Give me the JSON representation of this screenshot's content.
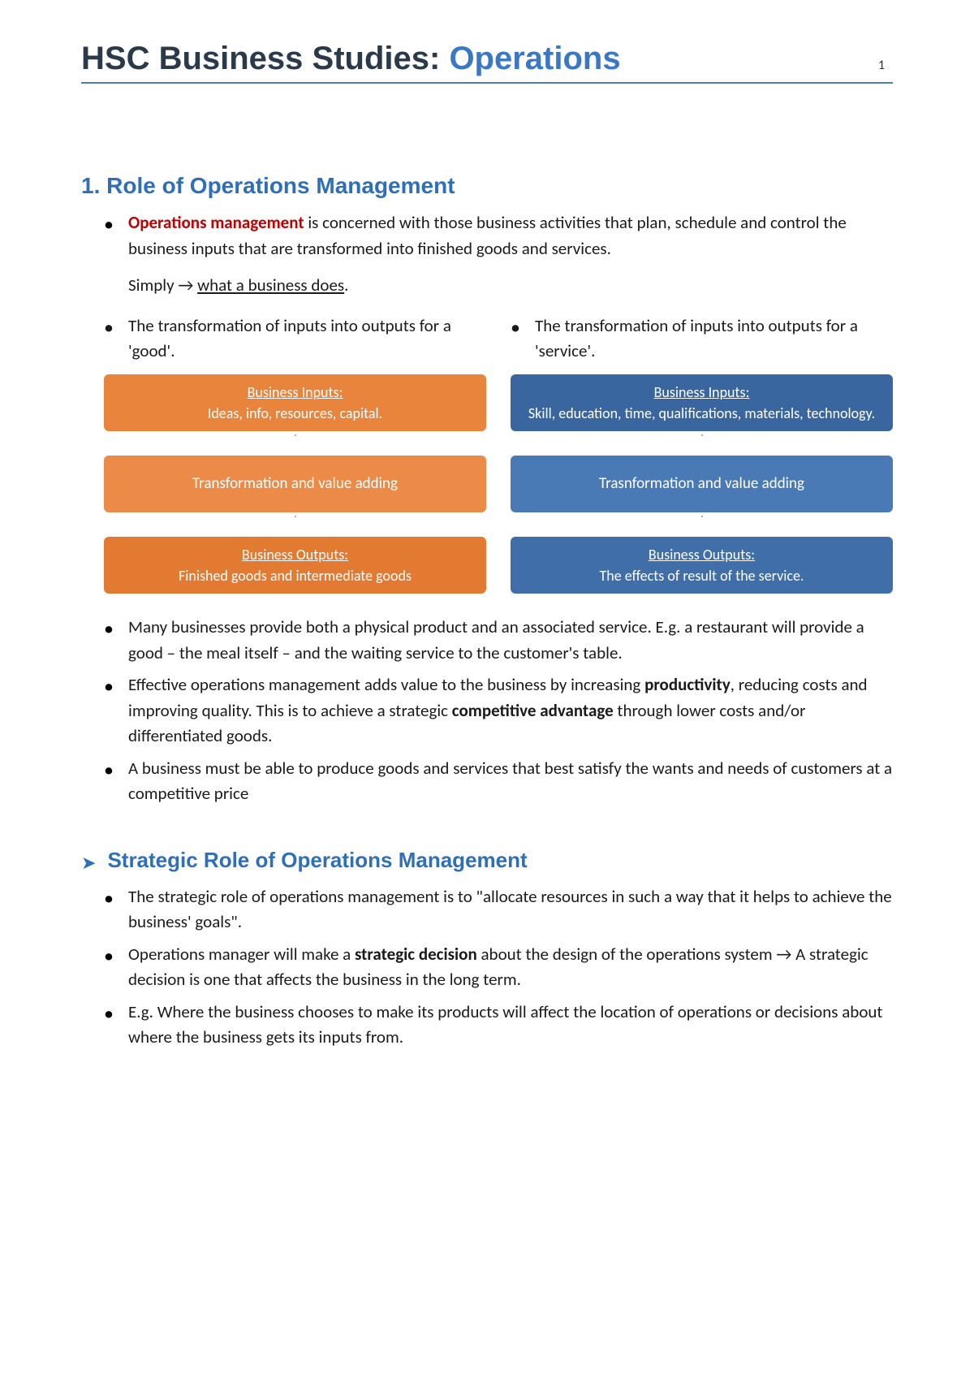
{
  "header": {
    "title_prefix": "HSC Business Studies: ",
    "title_accent": "Operations",
    "page_number": "1"
  },
  "section1": {
    "heading": "1. Role of Operations Management",
    "intro_term": "Operations management",
    "intro_rest": " is concerned with those business activities that plan, schedule and control the business inputs that are transformed into finished goods and services.",
    "simply_prefix": "Simply → ",
    "simply_underlined": "what a business does",
    "simply_suffix": "."
  },
  "columns": {
    "left": {
      "bullet": "The transformation of inputs into outputs for a 'good'.",
      "box1_title": "Business Inputs:",
      "box1_sub": "Ideas, info, resources, capital.",
      "box2": "Transformation and value adding",
      "box3_title": "Business Outputs:",
      "box3_sub": "Finished goods and intermediate goods",
      "colors": {
        "box1": "#e8843c",
        "box2": "#eb8b47",
        "box3": "#e27a32",
        "arrow": "#f5b68c"
      }
    },
    "right": {
      "bullet": "The transformation of inputs into outputs for a 'service'.",
      "box1_title": "Business Inputs:",
      "box1_sub": "Skill, education, time, qualifications, materials, technology.",
      "box2": "Trasnformation and value adding",
      "box3_title": "Business Outputs:",
      "box3_sub": "The effects of result of the service.",
      "colors": {
        "box1": "#3a66a0",
        "box2": "#4a7ab5",
        "box3": "#3f6ea8",
        "arrow": "#aebfda"
      }
    }
  },
  "after_bullets": {
    "b1": "Many businesses provide both a physical product and an associated service. E.g. a restaurant will provide a good – the meal itself – and the waiting service to the customer's table.",
    "b2_pre": "Effective operations management adds value to the business by increasing ",
    "b2_bold1": "productivity",
    "b2_mid": ", reducing costs and improving quality. This is to achieve a strategic ",
    "b2_bold2": "competitive advantage",
    "b2_post": " through lower costs and/or differentiated goods.",
    "b3": "A business must be able to produce goods and services that best satisfy the wants and needs of customers at a competitive price"
  },
  "section2": {
    "heading": "Strategic Role of Operations Management",
    "b1": "The strategic role of operations management is to \"allocate resources in such a way that it helps to achieve the business' goals\".",
    "b2_pre": "Operations manager will make a ",
    "b2_bold": "strategic decision",
    "b2_post": " about the design of the operations system →  A strategic decision is one that affects the business in the long term.",
    "b3": "E.g. Where the business chooses to make its products will affect the location of operations or decisions about where the business gets its inputs from."
  }
}
